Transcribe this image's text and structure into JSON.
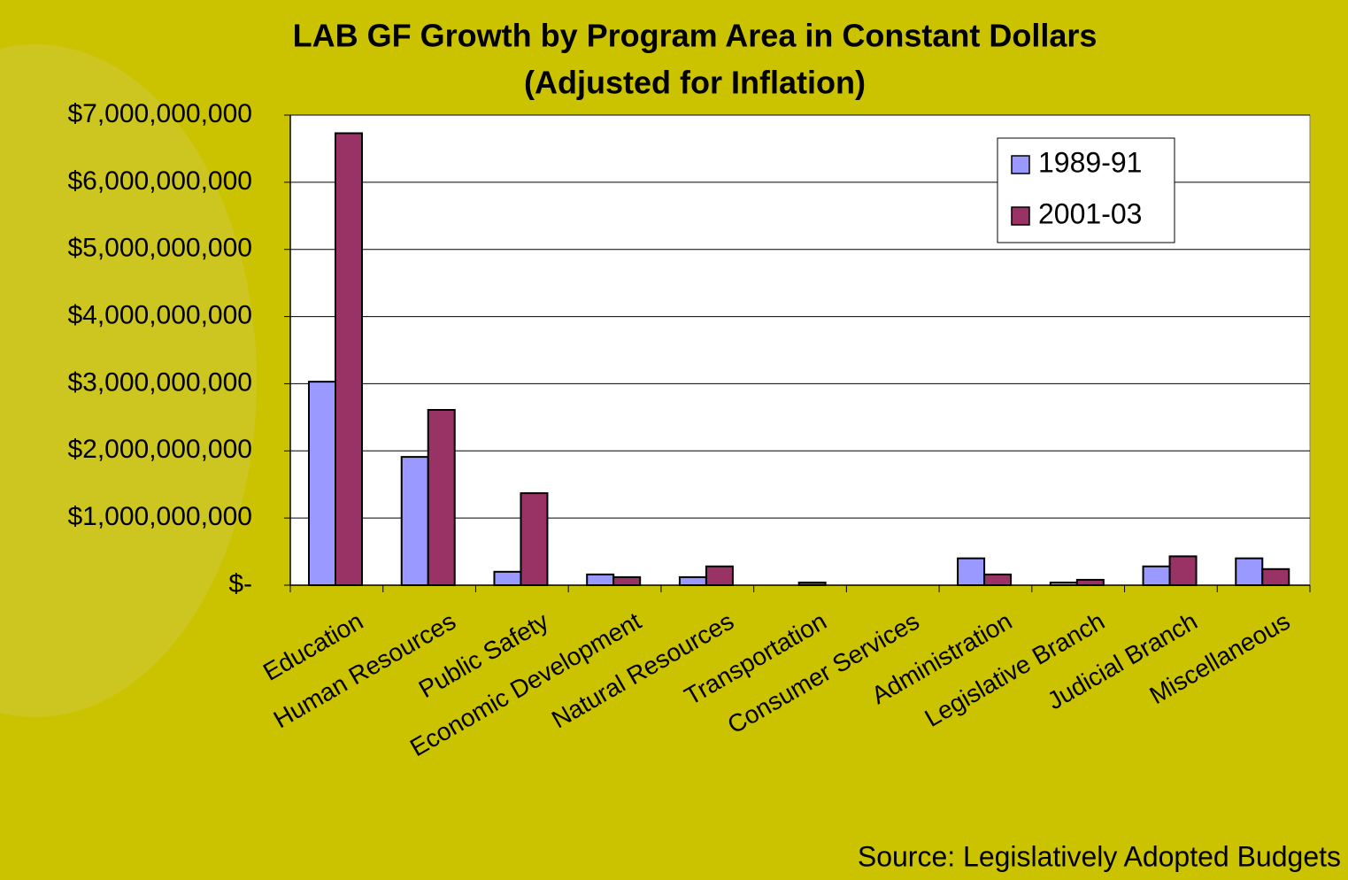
{
  "chart_data": {
    "type": "bar",
    "title": "LAB GF Growth by Program Area in Constant Dollars",
    "subtitle": "(Adjusted for Inflation)",
    "source": "Source: Legislatively Adopted Budgets",
    "categories": [
      "Education",
      "Human Resources",
      "Public Safety",
      "Economic Development",
      "Natural Resources",
      "Transportation",
      "Consumer Services",
      "Administration",
      "Legislative Branch",
      "Judicial Branch",
      "Miscellaneous"
    ],
    "series": [
      {
        "name": "1989-91",
        "color": "#9999ff",
        "values": [
          3030000000,
          1910000000,
          200000000,
          160000000,
          120000000,
          0,
          0,
          400000000,
          40000000,
          280000000,
          400000000
        ]
      },
      {
        "name": "2001-03",
        "color": "#993366",
        "values": [
          6730000000,
          2610000000,
          1370000000,
          120000000,
          280000000,
          40000000,
          0,
          160000000,
          80000000,
          430000000,
          240000000
        ]
      }
    ],
    "ylim": [
      0,
      7000000000
    ],
    "yticks": [
      {
        "value": 0,
        "label": "$-"
      },
      {
        "value": 1000000000,
        "label": "$1,000,000,000"
      },
      {
        "value": 2000000000,
        "label": "$2,000,000,000"
      },
      {
        "value": 3000000000,
        "label": "$3,000,000,000"
      },
      {
        "value": 4000000000,
        "label": "$4,000,000,000"
      },
      {
        "value": 5000000000,
        "label": "$5,000,000,000"
      },
      {
        "value": 6000000000,
        "label": "$6,000,000,000"
      },
      {
        "value": 7000000000,
        "label": "$7,000,000,000"
      }
    ],
    "grid": true,
    "legend": "upper right"
  }
}
